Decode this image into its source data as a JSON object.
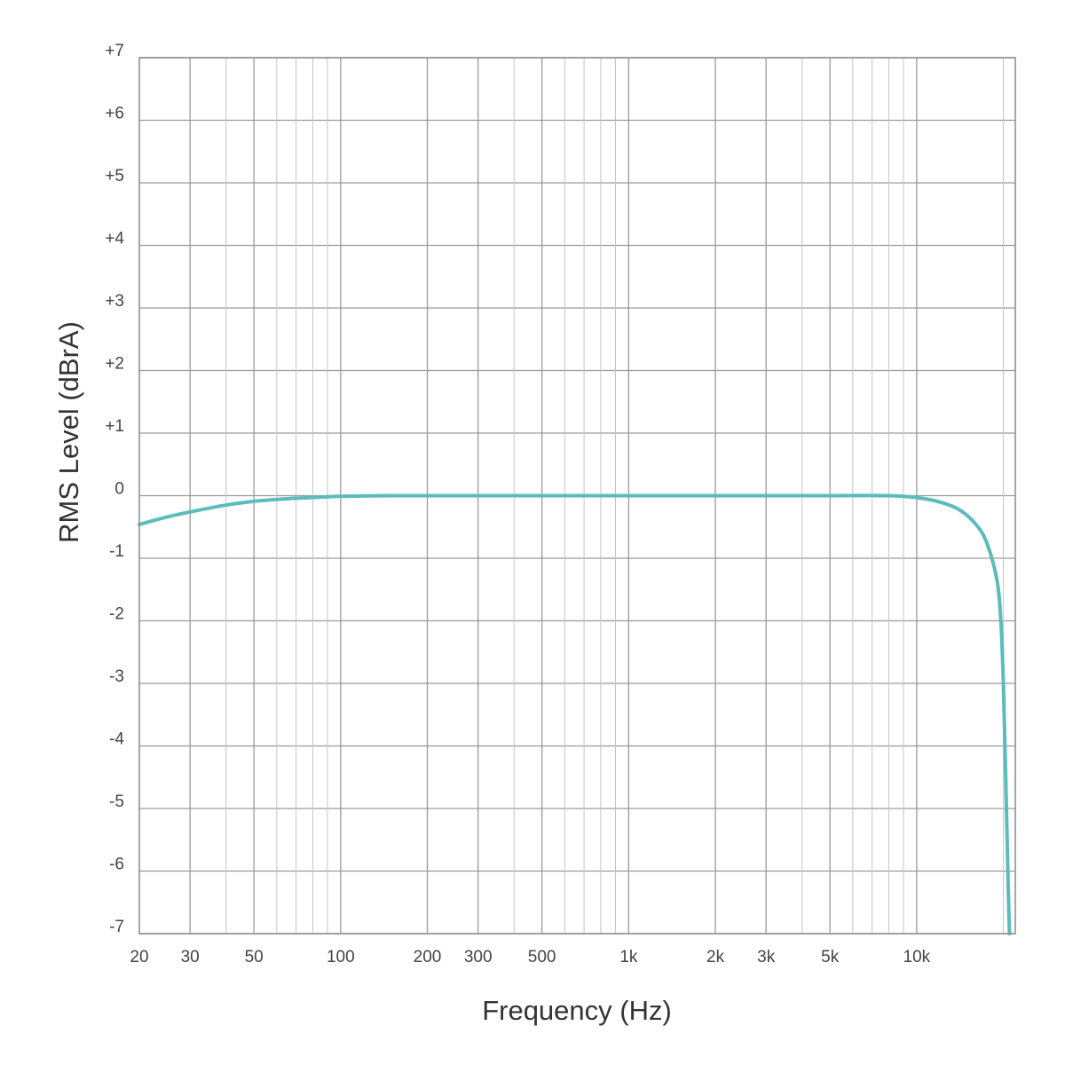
{
  "chart_data": {
    "type": "line",
    "title": "",
    "xlabel": "Frequency (Hz)",
    "ylabel": "RMS Level (dBrA)",
    "x_scale": "log",
    "xlim": [
      20,
      22000
    ],
    "ylim": [
      -7,
      7
    ],
    "grid": true,
    "x_tick_values": [
      20,
      30,
      50,
      100,
      200,
      300,
      500,
      1000,
      2000,
      3000,
      5000,
      10000
    ],
    "x_tick_labels": [
      "20",
      "30",
      "50",
      "100",
      "200",
      "300",
      "500",
      "1k",
      "2k",
      "3k",
      "5k",
      "10k"
    ],
    "y_tick_values": [
      7,
      6,
      5,
      4,
      3,
      2,
      1,
      0,
      -1,
      -2,
      -3,
      -4,
      -5,
      -6,
      -7
    ],
    "y_tick_labels": [
      "+7",
      "+6",
      "+5",
      "+4",
      "+3",
      "+2",
      "+1",
      "0",
      "-1",
      "-2",
      "-3",
      "-4",
      "-5",
      "-6",
      "-7"
    ],
    "series": [
      {
        "name": "",
        "color": "#5bbcbb",
        "x": [
          20,
          25,
          30,
          40,
          50,
          60,
          70,
          80,
          100,
          150,
          200,
          500,
          1000,
          2000,
          5000,
          8000,
          10000,
          12000,
          14000,
          16000,
          17500,
          19000,
          19600,
          20000,
          20400,
          20800,
          21000
        ],
        "y": [
          -0.46,
          -0.34,
          -0.26,
          -0.15,
          -0.09,
          -0.06,
          -0.04,
          -0.03,
          -0.01,
          0,
          0,
          0,
          0,
          0,
          0,
          0,
          -0.03,
          -0.1,
          -0.22,
          -0.45,
          -0.75,
          -1.35,
          -2.0,
          -3.0,
          -4.6,
          -6.3,
          -7.0
        ]
      }
    ]
  },
  "colors": {
    "curve": "#5bbcbb",
    "grid": "#9a9a9a",
    "text": "#444444"
  }
}
